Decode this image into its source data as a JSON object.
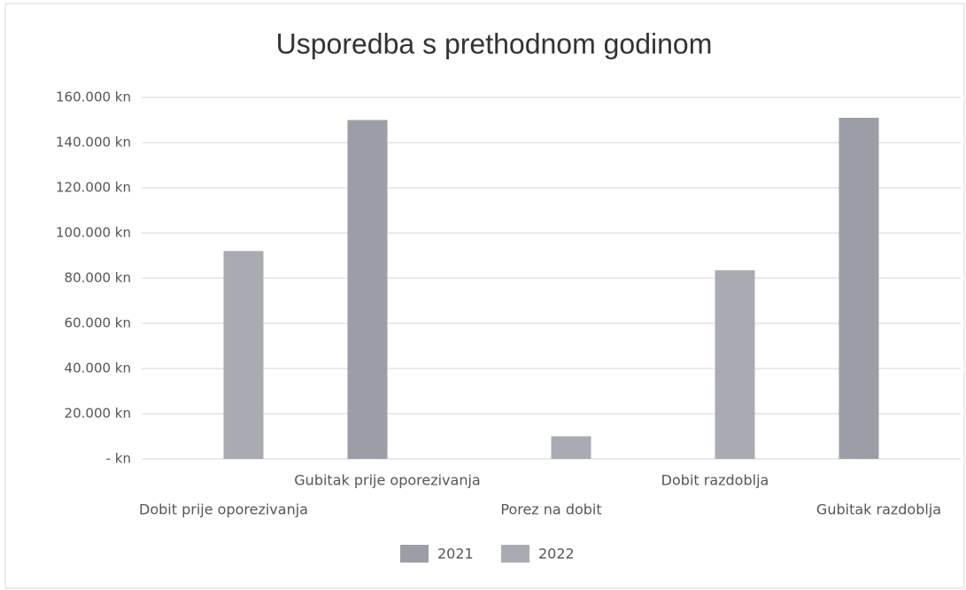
{
  "chart_data": {
    "type": "bar",
    "title": "Usporedba s prethodnom godinom",
    "categories": [
      "Dobit prije oporezivanja",
      "Gubitak prije oporezivanja",
      "Porez na dobit",
      "Dobit razdoblja",
      "Gubitak razdoblja"
    ],
    "series": [
      {
        "name": "2021",
        "color": "#9b9ea6",
        "values": [
          null,
          150000,
          null,
          null,
          151000
        ]
      },
      {
        "name": "2022",
        "color": "#a8abb2",
        "values": [
          92000,
          null,
          10000,
          83500,
          null
        ]
      }
    ],
    "ylim": [
      0,
      160000
    ],
    "yticks": [
      {
        "value": 0,
        "label": "- kn"
      },
      {
        "value": 20000,
        "label": "20.000 kn"
      },
      {
        "value": 40000,
        "label": "40.000 kn"
      },
      {
        "value": 60000,
        "label": "60.000 kn"
      },
      {
        "value": 80000,
        "label": "80.000 kn"
      },
      {
        "value": 100000,
        "label": "100.000 kn"
      },
      {
        "value": 120000,
        "label": "120.000 kn"
      },
      {
        "value": 140000,
        "label": "140.000 kn"
      },
      {
        "value": 160000,
        "label": "160.000 kn"
      }
    ],
    "grid": true,
    "legend": "bottom"
  }
}
